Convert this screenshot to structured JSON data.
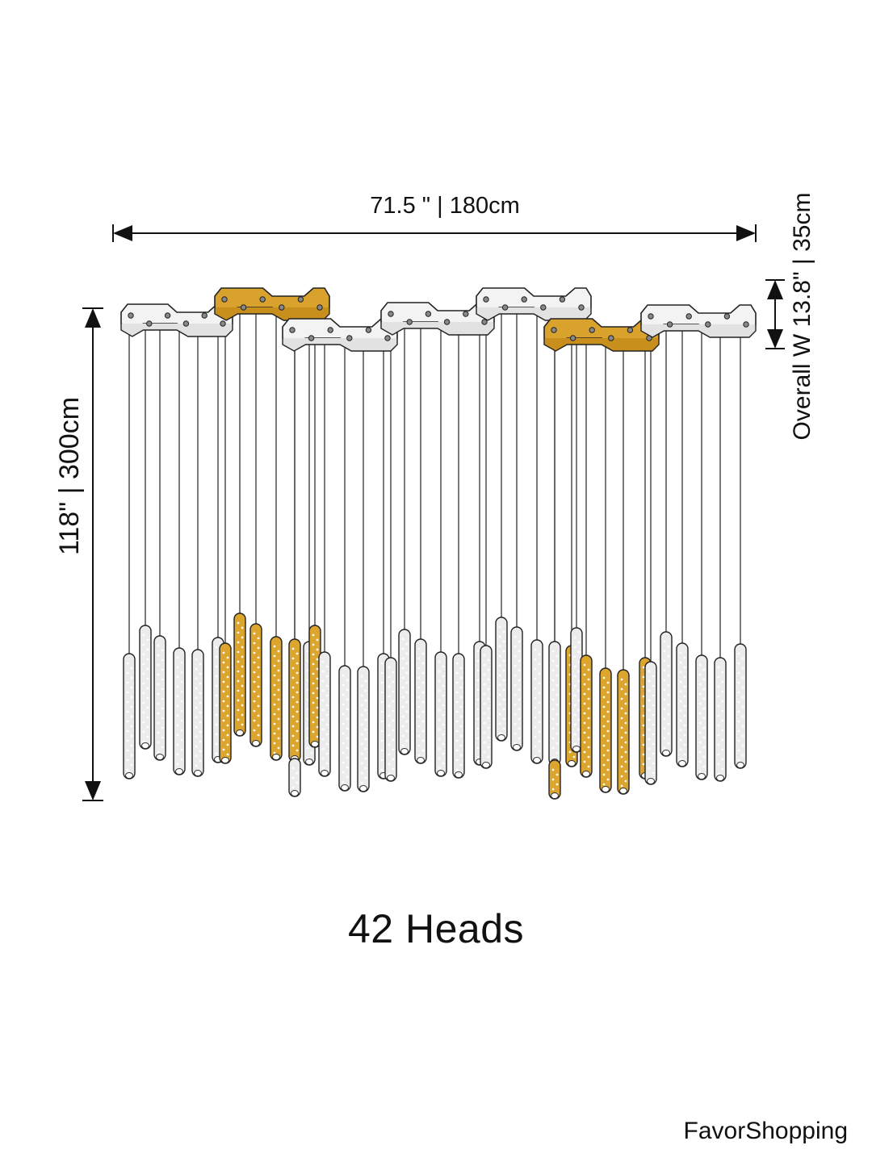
{
  "dimensions": {
    "width_label": "71.5 \" | 180cm",
    "height_label": "118\" | 300cm",
    "depth_label": "Overall W 13.8\" | 35cm"
  },
  "head_count_label": "42 Heads",
  "brand": "FavorShopping",
  "colors": {
    "plate_silver": "#f3f3f3",
    "plate_gold": "#d9a22c",
    "outline": "#222222",
    "tube_clear": "#ececec",
    "tube_gold": "#dca52e"
  }
}
